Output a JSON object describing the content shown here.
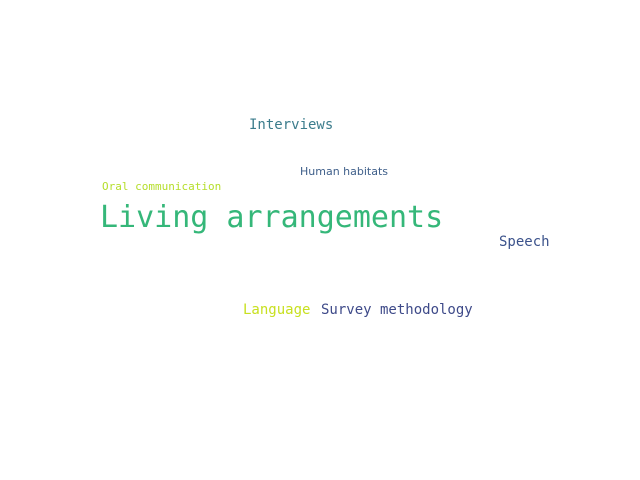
{
  "words": [
    {
      "text": "Living arrangements",
      "color": "#35b779"
    },
    {
      "text": "Interviews",
      "color": "#3b7c8c"
    },
    {
      "text": "Human habitats",
      "color": "#3f5f8a"
    },
    {
      "text": "Oral communication",
      "color": "#b5de2b"
    },
    {
      "text": "Speech",
      "color": "#3b528b"
    },
    {
      "text": "Language",
      "color": "#c8e020"
    },
    {
      "text": "Survey methodology",
      "color": "#3e4a89"
    }
  ]
}
